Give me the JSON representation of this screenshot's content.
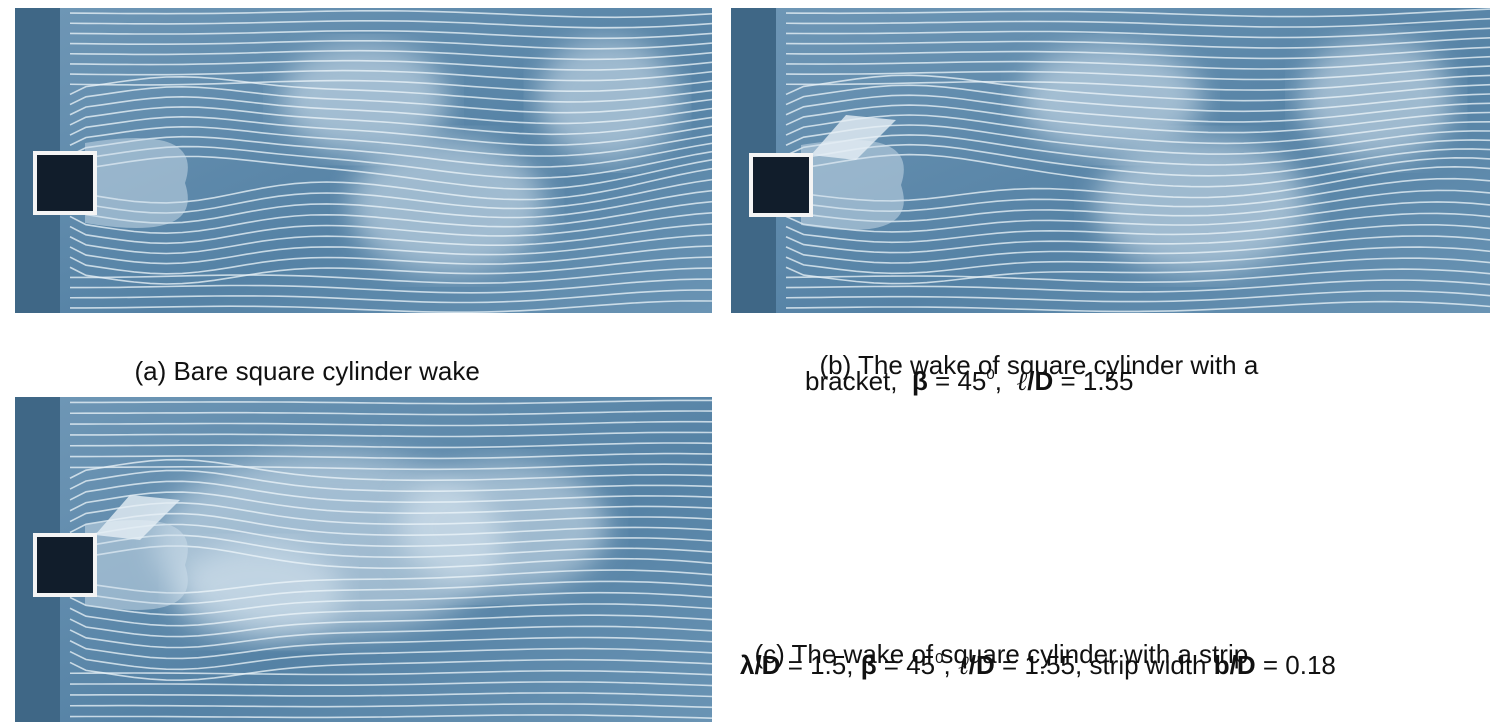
{
  "panels": [
    {
      "caption_lines": [
        [
          "(a) Bare square cylinder wake"
        ]
      ]
    },
    {
      "caption_lines": [
        [
          "(b) The wake of square cylinder with a"
        ],
        [
          "bracket,  ",
          "β",
          " = 45",
          "0",
          ",  ",
          "ℓ",
          "/D",
          " = 1.55"
        ]
      ]
    },
    {
      "caption_lines": [
        [
          "(c) The wake of square cylinder with a strip,"
        ],
        [
          "λ/D",
          " = 1.5, ",
          "β",
          " = 45",
          "0",
          ", ",
          "ℓ",
          "/D",
          " = 1.55, strip width ",
          "b/D",
          " = 0.18"
        ]
      ]
    }
  ]
}
